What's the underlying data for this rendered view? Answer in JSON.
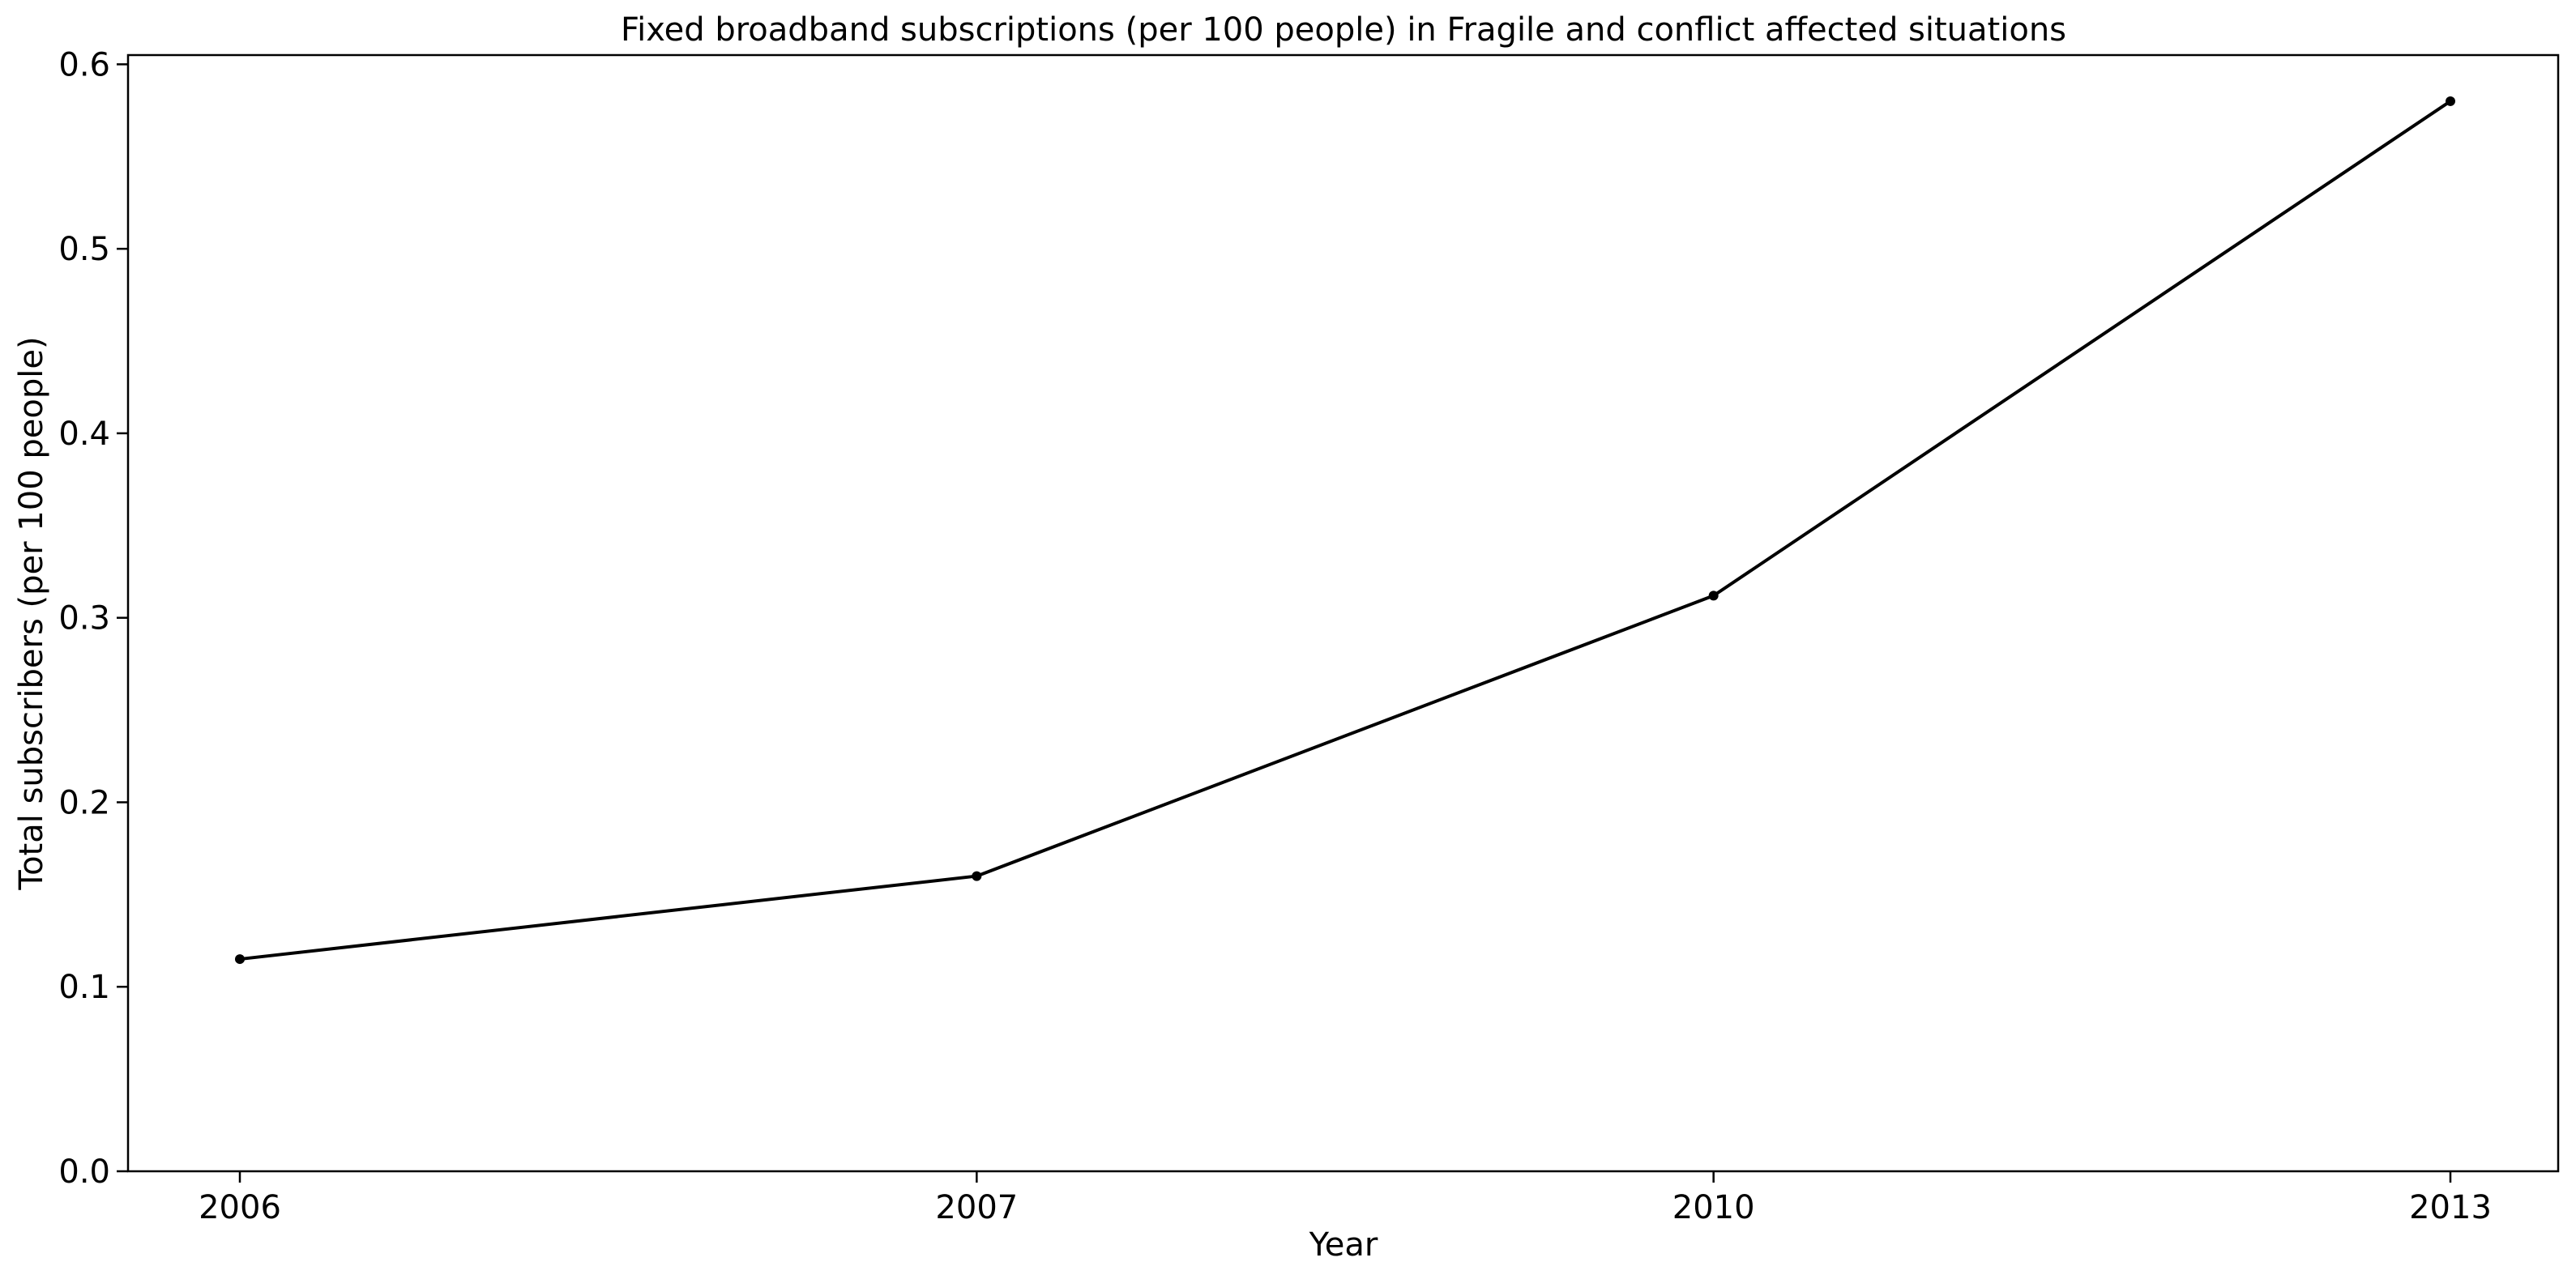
{
  "chart_data": {
    "type": "line",
    "title": "Fixed broadband subscriptions (per 100 people) in Fragile and conflict affected situations",
    "xlabel": "Year",
    "ylabel": "Total subscribers (per 100 people)",
    "categories": [
      "2006",
      "2007",
      "2010",
      "2013"
    ],
    "series": [
      {
        "values": [
          0.115,
          0.16,
          0.312,
          0.58
        ]
      }
    ],
    "yticks": [
      "0.0",
      "0.1",
      "0.2",
      "0.3",
      "0.4",
      "0.5",
      "0.6"
    ],
    "ylim": [
      0,
      0.605
    ],
    "grid": false,
    "legend": "none",
    "colors": {
      "line": "#000000",
      "axis": "#000000",
      "background": "#ffffff"
    }
  }
}
